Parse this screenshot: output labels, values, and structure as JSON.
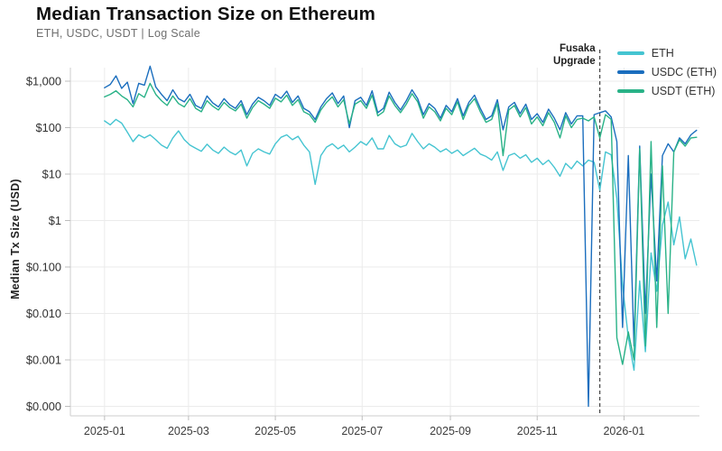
{
  "header": {
    "title": "Median Transaction Size on Ethereum",
    "subtitle": "ETH, USDC, USDT | Log Scale"
  },
  "chart_data": {
    "type": "line",
    "title": "Median Transaction Size on Ethereum",
    "subtitle": "ETH, USDC, USDT | Log Scale",
    "xlabel": "",
    "ylabel": "Median Tx Size (USD)",
    "log_scale": true,
    "grid": true,
    "legend_position": "top-right",
    "x_start_date": "2025-01-01",
    "x_interval_days": 4,
    "x_axis_range_days": [
      -24,
      418
    ],
    "x_ticks": [
      {
        "label": "2025-01",
        "day": 0
      },
      {
        "label": "2025-03",
        "day": 59
      },
      {
        "label": "2025-05",
        "day": 120
      },
      {
        "label": "2025-07",
        "day": 181
      },
      {
        "label": "2025-09",
        "day": 243
      },
      {
        "label": "2025-11",
        "day": 304
      },
      {
        "label": "2026-01",
        "day": 365
      }
    ],
    "y_ticks": [
      {
        "label": "$1,000",
        "value": 1000
      },
      {
        "label": "$100",
        "value": 100
      },
      {
        "label": "$10",
        "value": 10
      },
      {
        "label": "$1",
        "value": 1
      },
      {
        "label": "$0.100",
        "value": 0.1
      },
      {
        "label": "$0.010",
        "value": 0.01
      },
      {
        "label": "$0.001",
        "value": 0.001
      },
      {
        "label": "$0.000",
        "value": 0.0001
      }
    ],
    "annotation": {
      "label_line1": "Fusaka",
      "label_line2": "Upgrade",
      "date": "2025-12-15",
      "day": 348,
      "line_style": "dashed"
    },
    "series": [
      {
        "name": "ETH",
        "color": "#45c4d1",
        "values": [
          140,
          115,
          150,
          125,
          80,
          50,
          70,
          60,
          70,
          55,
          42,
          36,
          60,
          85,
          55,
          42,
          36,
          31,
          44,
          33,
          28,
          38,
          30,
          26,
          33,
          15,
          28,
          35,
          30,
          27,
          45,
          62,
          70,
          55,
          65,
          42,
          30,
          6,
          25,
          38,
          45,
          35,
          42,
          30,
          38,
          50,
          42,
          60,
          35,
          35,
          68,
          45,
          38,
          42,
          75,
          50,
          35,
          45,
          38,
          30,
          35,
          28,
          33,
          25,
          30,
          36,
          27,
          24,
          20,
          30,
          12,
          25,
          28,
          22,
          26,
          18,
          22,
          16,
          20,
          14,
          9,
          17,
          13,
          19,
          15,
          20,
          18,
          4.5,
          30,
          26,
          3,
          0.04,
          0.003,
          0.0006,
          0.05,
          0.0015,
          0.2,
          0.03,
          0.8,
          2.5,
          0.3,
          1.2,
          0.15,
          0.4,
          0.11
        ]
      },
      {
        "name": "USDC (ETH)",
        "color": "#1b6ebe",
        "values": [
          720,
          850,
          1300,
          700,
          950,
          330,
          900,
          820,
          2100,
          750,
          520,
          380,
          650,
          420,
          360,
          520,
          300,
          260,
          480,
          340,
          280,
          420,
          310,
          260,
          380,
          190,
          320,
          450,
          380,
          300,
          520,
          430,
          610,
          350,
          480,
          260,
          220,
          150,
          280,
          420,
          560,
          330,
          480,
          100,
          380,
          450,
          300,
          620,
          210,
          260,
          580,
          350,
          240,
          380,
          650,
          420,
          190,
          330,
          260,
          160,
          300,
          220,
          420,
          180,
          350,
          500,
          260,
          150,
          180,
          400,
          90,
          280,
          350,
          200,
          320,
          150,
          200,
          130,
          250,
          160,
          90,
          210,
          120,
          180,
          180,
          0.0001,
          190,
          210,
          230,
          170,
          50,
          0.005,
          25,
          0.002,
          40,
          0.01,
          10,
          0.05,
          25,
          45,
          30,
          60,
          45,
          70,
          88
        ]
      },
      {
        "name": "USDT (ETH)",
        "color": "#29b287",
        "values": [
          460,
          520,
          620,
          480,
          400,
          280,
          540,
          450,
          900,
          520,
          380,
          300,
          480,
          330,
          280,
          420,
          260,
          220,
          380,
          290,
          240,
          350,
          270,
          230,
          320,
          160,
          270,
          380,
          320,
          260,
          430,
          360,
          500,
          300,
          400,
          220,
          190,
          130,
          240,
          350,
          460,
          280,
          400,
          120,
          320,
          380,
          260,
          500,
          180,
          220,
          480,
          300,
          210,
          320,
          540,
          360,
          160,
          280,
          220,
          140,
          260,
          190,
          360,
          150,
          300,
          420,
          220,
          130,
          150,
          330,
          25,
          240,
          300,
          170,
          270,
          120,
          170,
          110,
          210,
          130,
          60,
          180,
          100,
          150,
          160,
          140,
          170,
          60,
          190,
          150,
          0.003,
          0.0008,
          0.004,
          0.001,
          35,
          0.002,
          50,
          0.005,
          15,
          0.01,
          30,
          55,
          40,
          60,
          62
        ]
      }
    ]
  },
  "colors": {
    "background": "#ffffff",
    "grid": "#ebebeb",
    "spine": "#d6d6d6",
    "tick": "#bdbdbd",
    "annotation_line": "#444444",
    "eth": "#45c4d1",
    "usdc": "#1b6ebe",
    "usdt": "#29b287"
  }
}
